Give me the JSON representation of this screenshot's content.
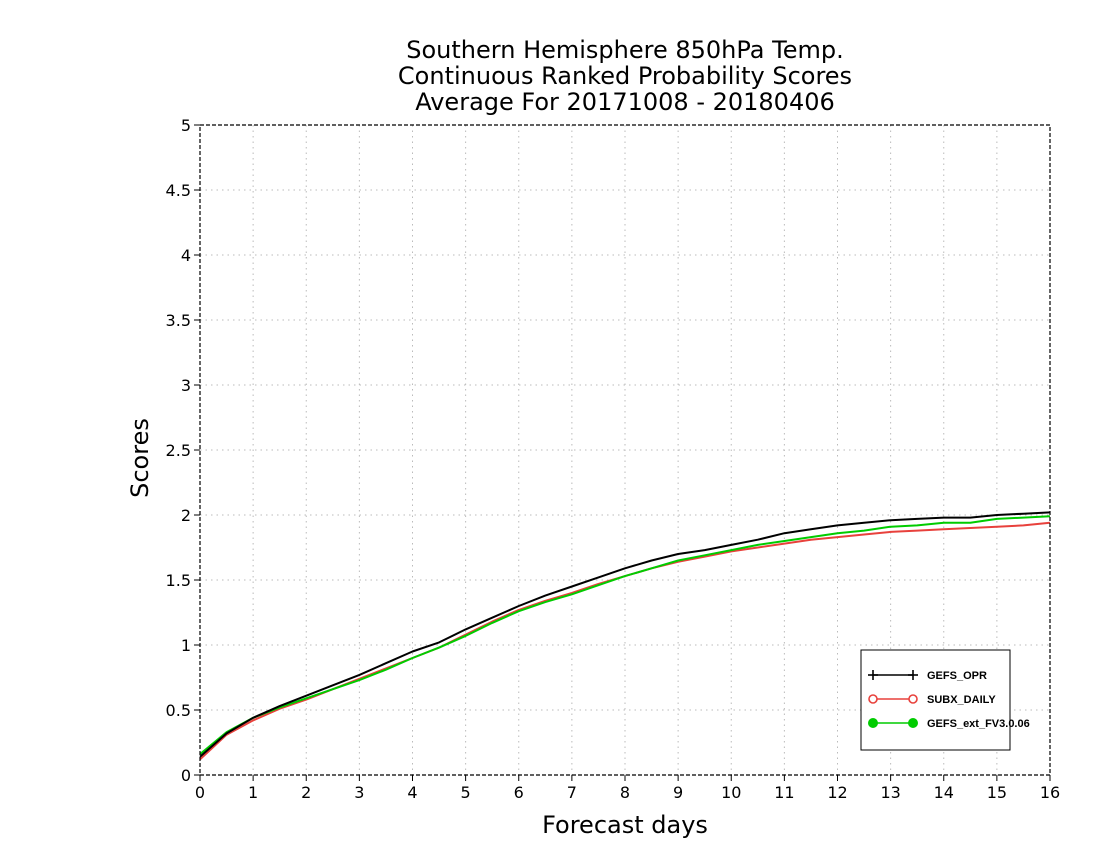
{
  "chart_data": {
    "type": "line",
    "title": [
      "Southern Hemisphere 850hPa Temp.",
      "Continuous Ranked Probability Scores",
      "Average For 20171008 - 20180406"
    ],
    "xlabel": "Forecast days",
    "ylabel": "Scores",
    "xlim": [
      0,
      16
    ],
    "ylim": [
      0,
      5
    ],
    "x_ticks": [
      "0",
      "1",
      "2",
      "3",
      "4",
      "5",
      "6",
      "7",
      "8",
      "9",
      "10",
      "11",
      "12",
      "13",
      "14",
      "15",
      "16"
    ],
    "y_ticks": [
      "0",
      "0.5",
      "1",
      "1.5",
      "2",
      "2.5",
      "3",
      "3.5",
      "4",
      "4.5",
      "5"
    ],
    "grid": true,
    "legend_position": "bottom-right",
    "x": [
      0,
      0.5,
      1,
      1.5,
      2,
      2.5,
      3,
      3.5,
      4,
      4.5,
      5,
      5.5,
      6,
      6.5,
      7,
      7.5,
      8,
      8.5,
      9,
      9.5,
      10,
      10.5,
      11,
      11.5,
      12,
      12.5,
      13,
      13.5,
      14,
      14.5,
      15,
      15.5,
      16
    ],
    "series": [
      {
        "name": "GEFS_OPR",
        "color": "#000000",
        "marker": "plus",
        "values": [
          0.14,
          0.32,
          0.44,
          0.53,
          0.61,
          0.69,
          0.77,
          0.86,
          0.95,
          1.02,
          1.12,
          1.21,
          1.3,
          1.38,
          1.45,
          1.52,
          1.59,
          1.65,
          1.7,
          1.73,
          1.77,
          1.81,
          1.86,
          1.89,
          1.92,
          1.94,
          1.96,
          1.97,
          1.98,
          1.98,
          2.0,
          2.01,
          2.02
        ]
      },
      {
        "name": "SUBX_DAILY",
        "color": "#e8413c",
        "marker": "open-circle",
        "values": [
          0.12,
          0.31,
          0.42,
          0.51,
          0.58,
          0.66,
          0.74,
          0.82,
          0.9,
          0.98,
          1.08,
          1.18,
          1.27,
          1.34,
          1.4,
          1.47,
          1.53,
          1.59,
          1.64,
          1.68,
          1.72,
          1.75,
          1.78,
          1.81,
          1.83,
          1.85,
          1.87,
          1.88,
          1.89,
          1.9,
          1.91,
          1.92,
          1.94
        ]
      },
      {
        "name": "GEFS_ext_FV3.0.06",
        "color": "#00cc00",
        "marker": "filled-circle",
        "values": [
          0.16,
          0.33,
          0.44,
          0.52,
          0.59,
          0.66,
          0.73,
          0.81,
          0.9,
          0.98,
          1.07,
          1.17,
          1.26,
          1.33,
          1.39,
          1.46,
          1.53,
          1.59,
          1.65,
          1.69,
          1.73,
          1.77,
          1.8,
          1.83,
          1.86,
          1.88,
          1.91,
          1.92,
          1.94,
          1.94,
          1.97,
          1.98,
          1.99
        ]
      }
    ]
  }
}
